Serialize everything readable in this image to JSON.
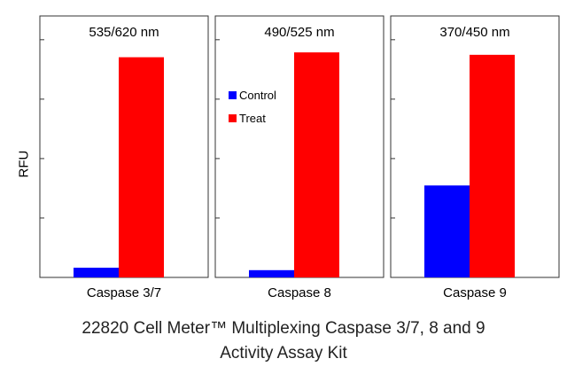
{
  "chart_data": {
    "type": "bar",
    "ylabel": "RFU",
    "legend": {
      "placement": "inside second panel, upper-left",
      "entries": [
        {
          "name": "Control",
          "color": "#0000ff"
        },
        {
          "name": "Treat",
          "color": "#ff0000"
        }
      ]
    },
    "colors": {
      "control": "#0000ff",
      "treat": "#ff0000"
    },
    "ylim": [
      0,
      100
    ],
    "panels": [
      {
        "title": "535/620 nm",
        "category": "Caspase 3/7",
        "series": [
          {
            "name": "Control",
            "value": 4
          },
          {
            "name": "Treat",
            "value": 91
          }
        ]
      },
      {
        "title": "490/525 nm",
        "category": "Caspase 8",
        "series": [
          {
            "name": "Control",
            "value": 3
          },
          {
            "name": "Treat",
            "value": 93
          }
        ]
      },
      {
        "title": "370/450 nm",
        "category": "Caspase 9",
        "series": [
          {
            "name": "Control",
            "value": 38
          },
          {
            "name": "Treat",
            "value": 92
          }
        ]
      }
    ]
  },
  "caption": {
    "line1": "22820 Cell Meter™ Multiplexing Caspase 3/7, 8 and 9",
    "line2": "Activity Assay Kit"
  }
}
